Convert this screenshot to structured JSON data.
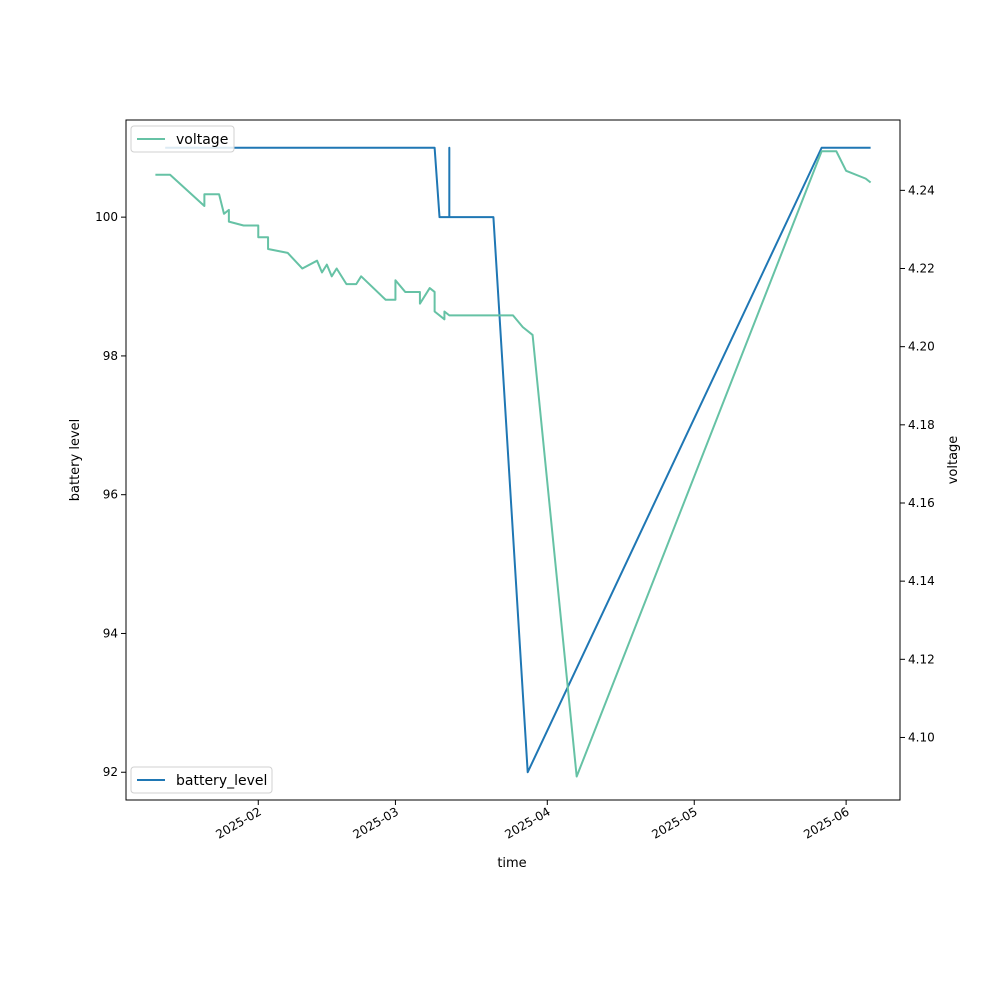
{
  "chart_data": {
    "type": "line",
    "xlabel": "time",
    "ylabel_left": "battery level",
    "ylabel_right": "voltage",
    "x_ticks": [
      "2025-02",
      "2025-03",
      "2025-04",
      "2025-05",
      "2025-06"
    ],
    "y_left_ticks": [
      "92",
      "94",
      "96",
      "98",
      "100"
    ],
    "y_right_ticks": [
      "4.10",
      "4.12",
      "4.14",
      "4.16",
      "4.18",
      "4.20",
      "4.22",
      "4.24"
    ],
    "y_left_range": [
      91.6,
      101.4
    ],
    "y_right_range": [
      4.084,
      4.258
    ],
    "x_range": [
      "2025-01-05",
      "2025-06-12"
    ],
    "legend_left_position": "lower-left",
    "legend_right_position": "upper-left",
    "grid": false,
    "series": [
      {
        "name": "battery_level",
        "axis": "left",
        "color": "#1f77b4",
        "points": [
          [
            "2025-01-13",
            101
          ],
          [
            "2025-03-09",
            101
          ],
          [
            "2025-03-10",
            100
          ],
          [
            "2025-03-12",
            100
          ],
          [
            "2025-03-12",
            101
          ],
          [
            "2025-03-12",
            100
          ],
          [
            "2025-03-21",
            100
          ],
          [
            "2025-03-28",
            92
          ],
          [
            "2025-05-27",
            101
          ],
          [
            "2025-06-06",
            101
          ]
        ]
      },
      {
        "name": "voltage",
        "axis": "right",
        "color": "#66c2a5",
        "points": [
          [
            "2025-01-11",
            4.244
          ],
          [
            "2025-01-14",
            4.244
          ],
          [
            "2025-01-21",
            4.236
          ],
          [
            "2025-01-21",
            4.239
          ],
          [
            "2025-01-24",
            4.239
          ],
          [
            "2025-01-25",
            4.234
          ],
          [
            "2025-01-26",
            4.235
          ],
          [
            "2025-01-26",
            4.232
          ],
          [
            "2025-01-29",
            4.231
          ],
          [
            "2025-02-01",
            4.231
          ],
          [
            "2025-02-01",
            4.228
          ],
          [
            "2025-02-03",
            4.228
          ],
          [
            "2025-02-03",
            4.225
          ],
          [
            "2025-02-07",
            4.224
          ],
          [
            "2025-02-10",
            4.22
          ],
          [
            "2025-02-13",
            4.222
          ],
          [
            "2025-02-14",
            4.219
          ],
          [
            "2025-02-15",
            4.221
          ],
          [
            "2025-02-16",
            4.218
          ],
          [
            "2025-02-17",
            4.22
          ],
          [
            "2025-02-19",
            4.216
          ],
          [
            "2025-02-21",
            4.216
          ],
          [
            "2025-02-22",
            4.218
          ],
          [
            "2025-02-27",
            4.212
          ],
          [
            "2025-03-01",
            4.212
          ],
          [
            "2025-03-01",
            4.217
          ],
          [
            "2025-03-03",
            4.214
          ],
          [
            "2025-03-06",
            4.214
          ],
          [
            "2025-03-06",
            4.211
          ],
          [
            "2025-03-08",
            4.215
          ],
          [
            "2025-03-09",
            4.214
          ],
          [
            "2025-03-09",
            4.209
          ],
          [
            "2025-03-11",
            4.207
          ],
          [
            "2025-03-11",
            4.209
          ],
          [
            "2025-03-12",
            4.208
          ],
          [
            "2025-03-14",
            4.208
          ],
          [
            "2025-03-21",
            4.208
          ],
          [
            "2025-03-25",
            4.208
          ],
          [
            "2025-03-27",
            4.205
          ],
          [
            "2025-03-29",
            4.203
          ],
          [
            "2025-04-07",
            4.09
          ],
          [
            "2025-05-27",
            4.25
          ],
          [
            "2025-05-30",
            4.25
          ],
          [
            "2025-06-01",
            4.245
          ],
          [
            "2025-06-05",
            4.243
          ],
          [
            "2025-06-06",
            4.242
          ]
        ]
      }
    ]
  }
}
